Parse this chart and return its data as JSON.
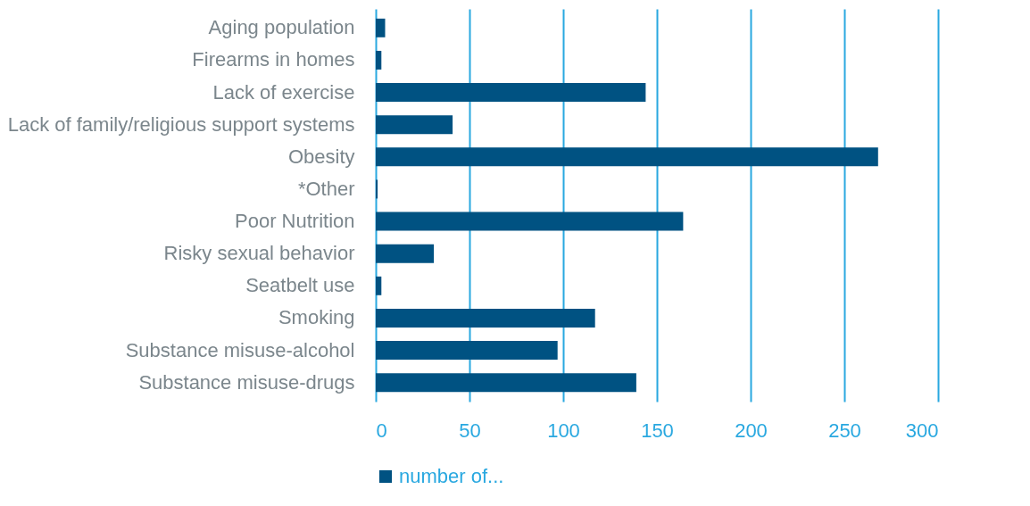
{
  "chart_data": {
    "type": "bar",
    "orientation": "horizontal",
    "categories": [
      "Aging population",
      "Firearms in homes",
      "Lack of exercise",
      "Lack of family/religious support systems",
      "Obesity",
      "*Other",
      "Poor Nutrition",
      "Risky sexual behavior",
      "Seatbelt use",
      "Smoking",
      "Substance misuse-alcohol",
      "Substance misuse-drugs"
    ],
    "series": [
      {
        "name": "number of...",
        "color": "#005282",
        "values": [
          5,
          3,
          144,
          41,
          268,
          1,
          164,
          31,
          3,
          117,
          97,
          139
        ]
      }
    ],
    "xlim": [
      0,
      300
    ],
    "xticks": [
      0,
      50,
      100,
      150,
      200,
      250,
      300
    ],
    "grid": "x",
    "legend": "bottom"
  }
}
